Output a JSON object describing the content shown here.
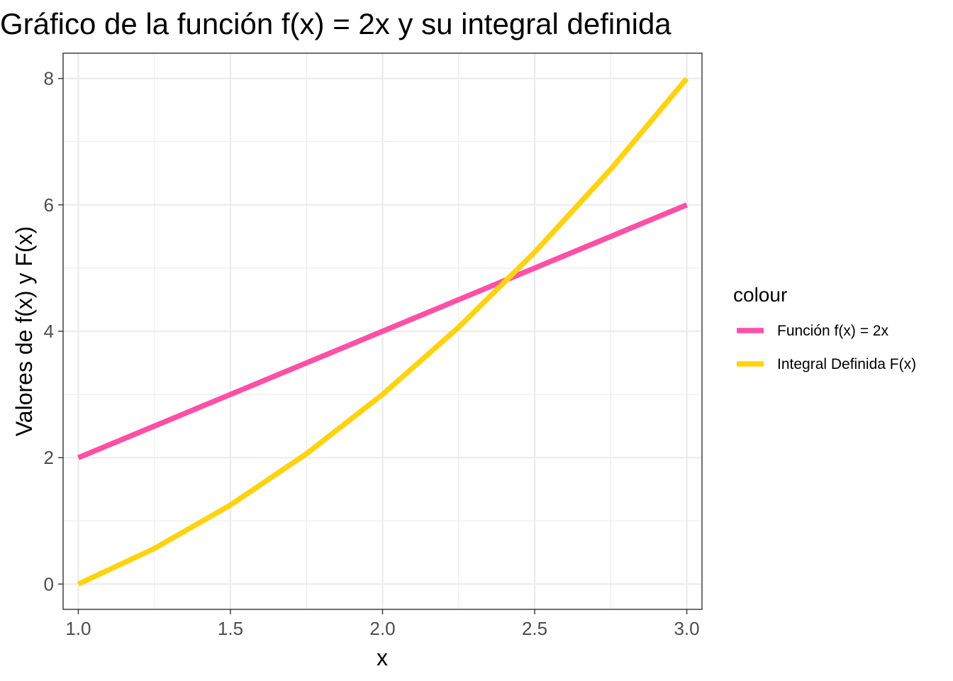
{
  "chart_data": {
    "type": "line",
    "title": "Gráfico de la función f(x) = 2x y su integral definida",
    "xlabel": "x",
    "ylabel": "Valores de f(x) y F(x)",
    "xlim": [
      0.95,
      3.05
    ],
    "ylim": [
      -0.4,
      8.4
    ],
    "x_ticks": [
      1.0,
      1.5,
      2.0,
      2.5,
      3.0
    ],
    "x_tick_labels": [
      "1.0",
      "1.5",
      "2.0",
      "2.5",
      "3.0"
    ],
    "y_ticks": [
      0,
      2,
      4,
      6,
      8
    ],
    "y_tick_labels": [
      "0",
      "2",
      "4",
      "6",
      "8"
    ],
    "grid": true,
    "legend": {
      "title": "colour",
      "position": "right"
    },
    "series": [
      {
        "name": "Función f(x) = 2x",
        "color": "#ff4fa7",
        "x": [
          1.0,
          1.25,
          1.5,
          1.75,
          2.0,
          2.25,
          2.5,
          2.75,
          3.0
        ],
        "y": [
          2.0,
          2.5,
          3.0,
          3.5,
          4.0,
          4.5,
          5.0,
          5.5,
          6.0
        ]
      },
      {
        "name": "Integral Definida F(x)",
        "color": "#ffd30f",
        "x": [
          1.0,
          1.25,
          1.5,
          1.75,
          2.0,
          2.25,
          2.5,
          2.75,
          3.0
        ],
        "y": [
          0.0,
          0.5625,
          1.25,
          2.0625,
          3.0,
          4.0625,
          5.25,
          6.5625,
          8.0
        ]
      }
    ]
  }
}
